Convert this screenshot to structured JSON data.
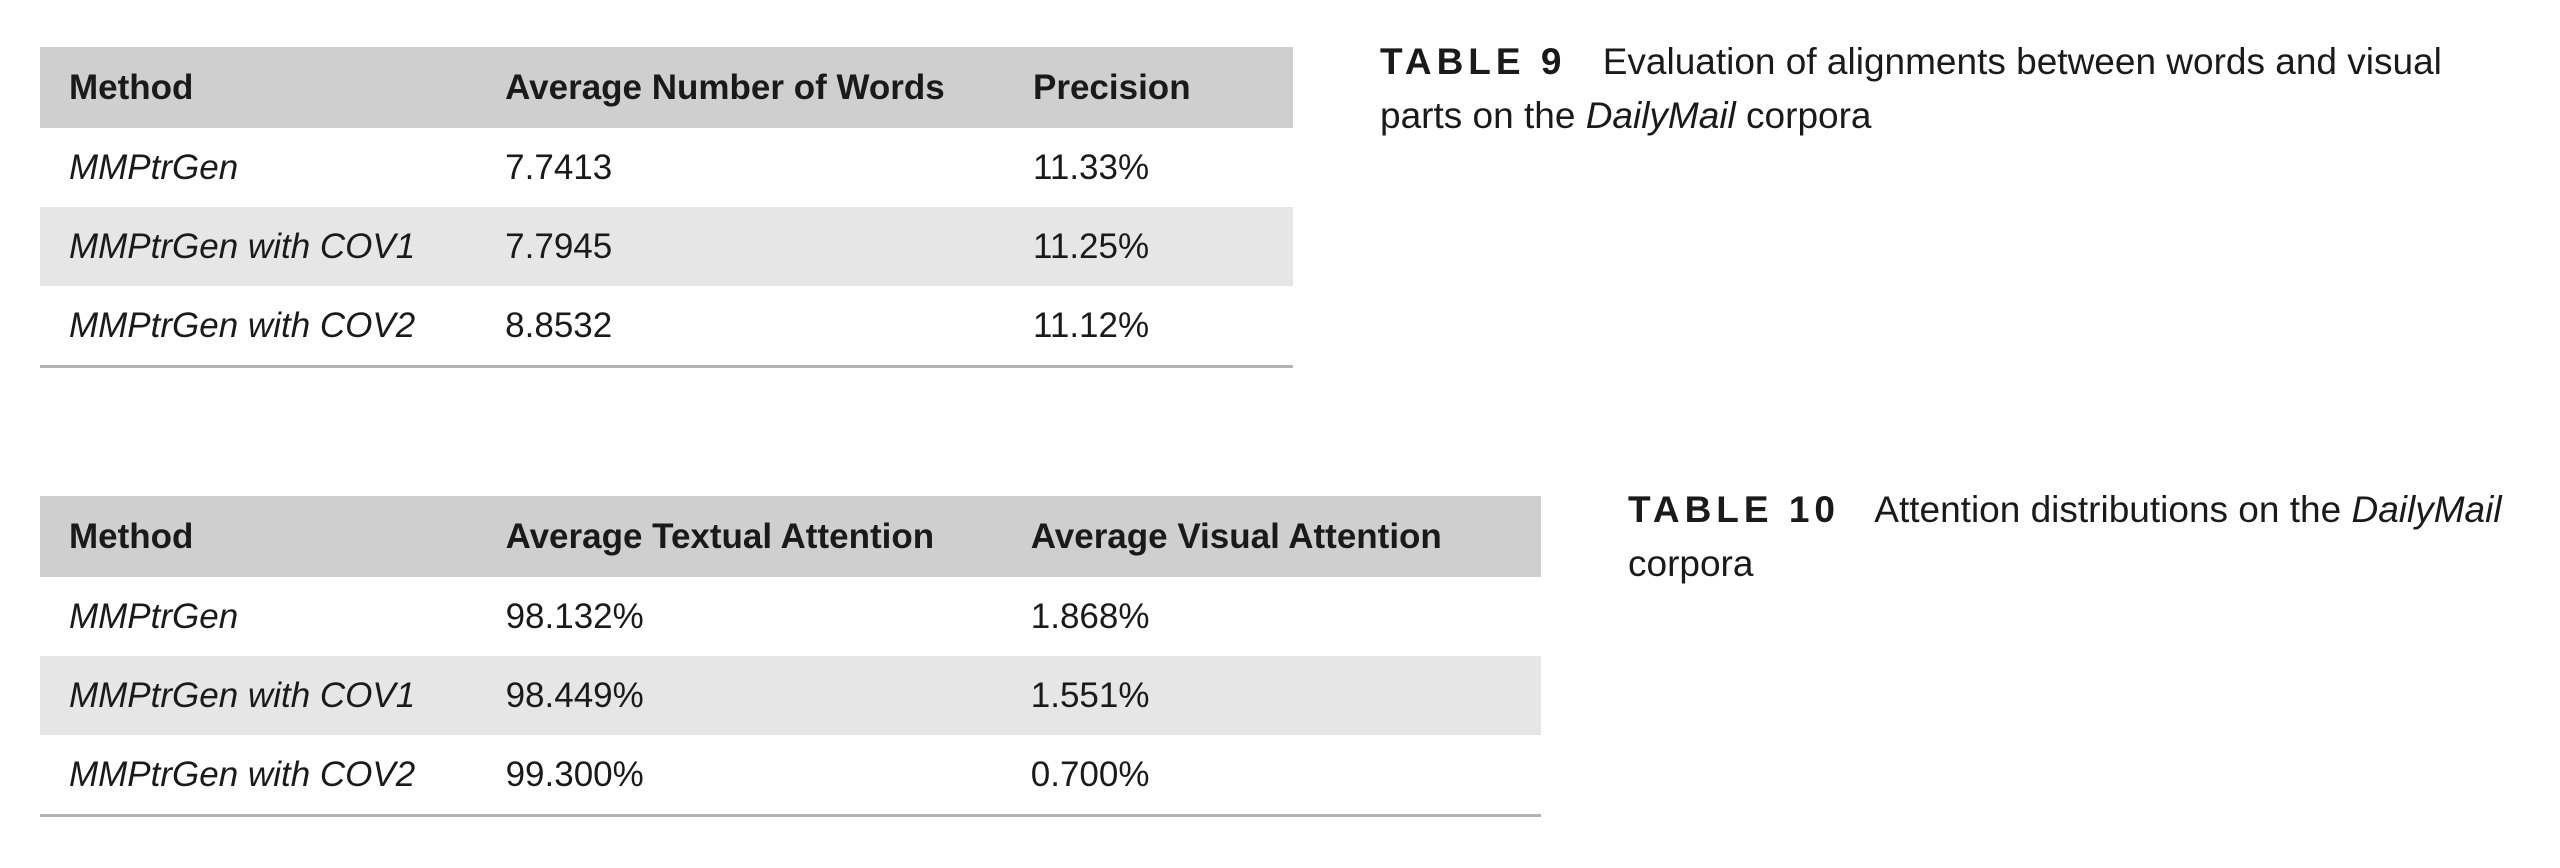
{
  "table9": {
    "caption": {
      "label": "TABLE 9",
      "text_before": "Evaluation of alignments between words and visual parts on the",
      "text_italic": "DailyMail",
      "text_after": "corpora"
    },
    "headers": [
      "Method",
      "Average Number of Words",
      "Precision"
    ],
    "rows": [
      [
        "MMPtrGen",
        "7.7413",
        "11.33%"
      ],
      [
        "MMPtrGen with COV1",
        "7.7945",
        "11.25%"
      ],
      [
        "MMPtrGen with COV2",
        "8.8532",
        "11.12%"
      ]
    ]
  },
  "table10": {
    "caption": {
      "label": "TABLE 10",
      "text_before": "Attention distributions on the",
      "text_italic": "DailyMail",
      "text_after": "corpora"
    },
    "headers": [
      "Method",
      "Average Textual Attention",
      "Average Visual Attention"
    ],
    "rows": [
      [
        "MMPtrGen",
        "98.132%",
        "1.868%"
      ],
      [
        "MMPtrGen with COV1",
        "98.449%",
        "1.551%"
      ],
      [
        "MMPtrGen with COV2",
        "99.300%",
        "0.700%"
      ]
    ]
  },
  "colors": {
    "header_bg": "#cfcfcf",
    "stripe_bg": "#e6e6e6",
    "rule": "#b3b3b3",
    "text": "#1a1a1a"
  }
}
